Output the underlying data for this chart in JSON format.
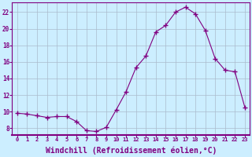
{
  "x": [
    0,
    1,
    2,
    3,
    4,
    5,
    6,
    7,
    8,
    9,
    10,
    11,
    12,
    13,
    14,
    15,
    16,
    17,
    18,
    19,
    20,
    21,
    22,
    23
  ],
  "y": [
    9.8,
    9.7,
    9.5,
    9.3,
    9.4,
    9.4,
    8.8,
    7.7,
    7.6,
    8.1,
    10.2,
    12.4,
    15.3,
    16.7,
    19.6,
    20.4,
    22.0,
    22.6,
    21.8,
    19.8,
    16.4,
    15.0,
    14.8,
    10.5
  ],
  "line_color": "#800080",
  "marker": "+",
  "marker_size": 4,
  "xlabel": "Windchill (Refroidissement éolien,°C)",
  "xlabel_fontsize": 7,
  "ylabel_ticks": [
    8,
    10,
    12,
    14,
    16,
    18,
    20,
    22
  ],
  "xtick_labels": [
    "0",
    "1",
    "2",
    "3",
    "4",
    "5",
    "6",
    "7",
    "8",
    "9",
    "10",
    "11",
    "12",
    "13",
    "14",
    "15",
    "16",
    "17",
    "18",
    "19",
    "20",
    "21",
    "22",
    "23"
  ],
  "ylim": [
    7.2,
    23.2
  ],
  "xlim": [
    -0.5,
    23.5
  ],
  "bg_color": "#cceeff",
  "grid_color": "#aabbcc",
  "tick_color": "#800080",
  "axis_color": "#800080"
}
